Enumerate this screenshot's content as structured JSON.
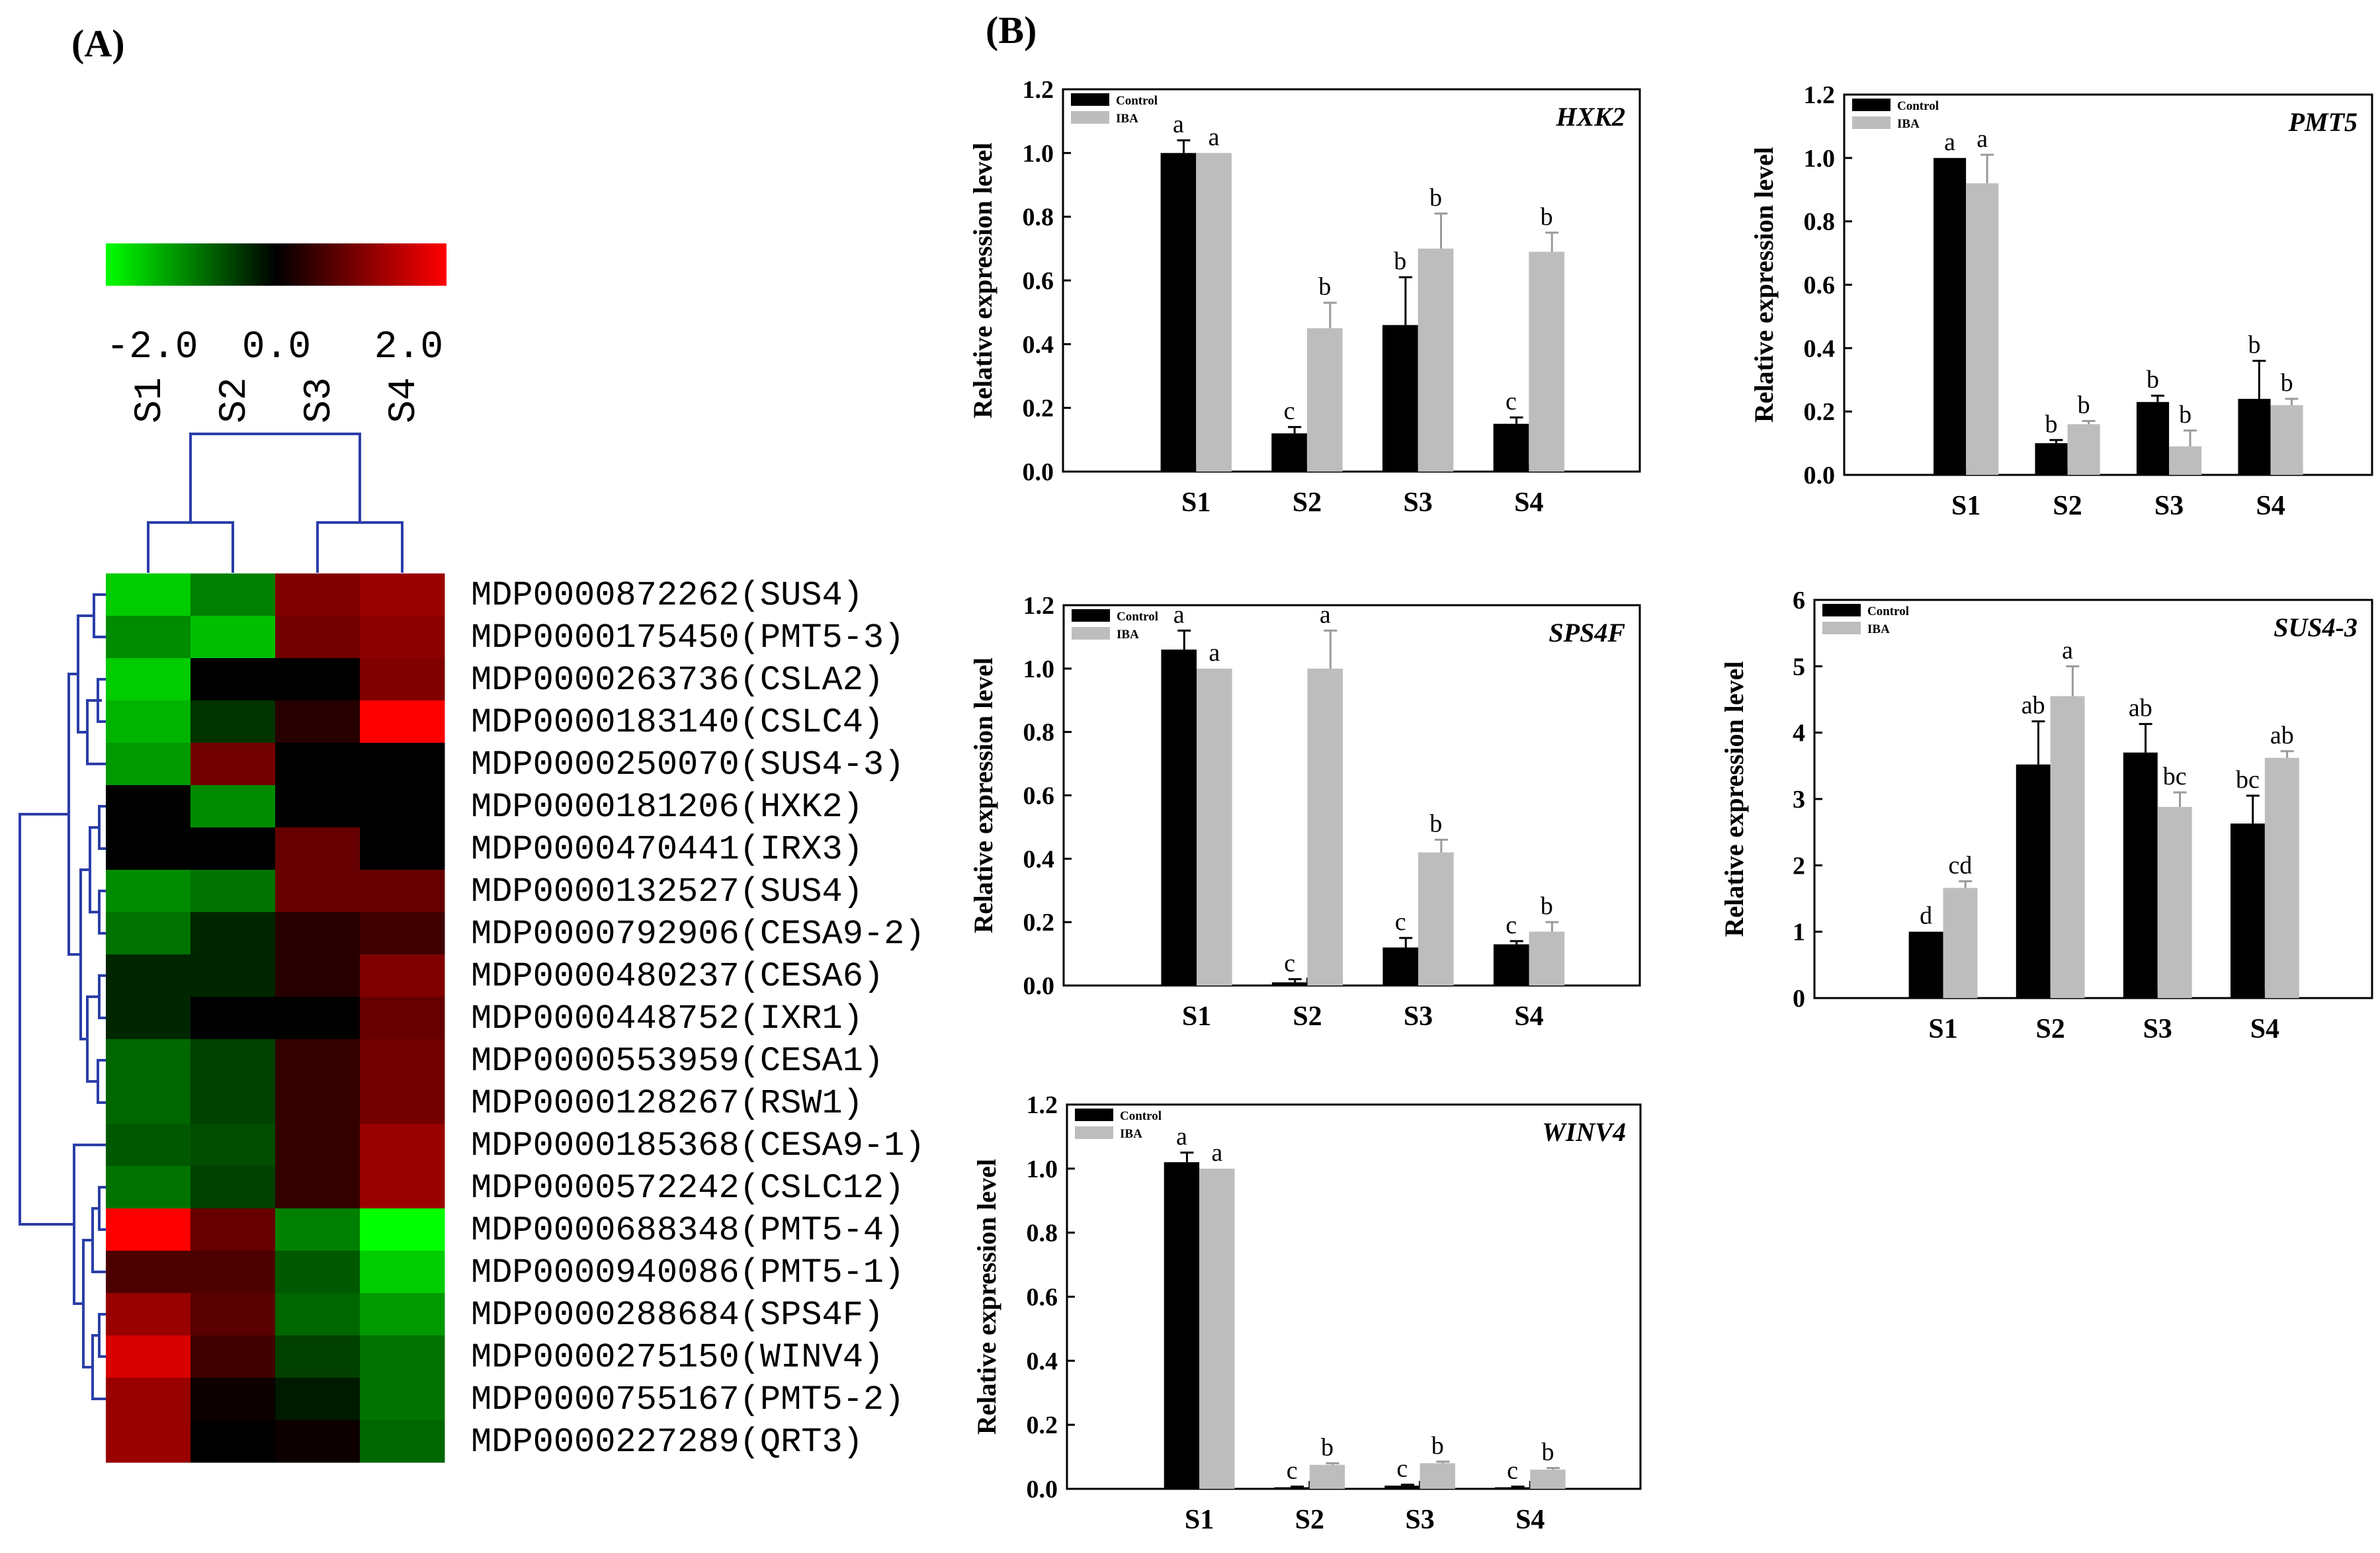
{
  "panel_labels": {
    "a": "(A)",
    "b": "(B)"
  },
  "heatmap": {
    "scale": {
      "min_label": "-2.0",
      "mid_label": "0.0",
      "max_label": "2.0",
      "min": -2,
      "max": 2
    },
    "columns": [
      "S1",
      "S2",
      "S3",
      "S4"
    ],
    "rows": [
      {
        "gene": "MDP0000872262(SUS4)",
        "values": [
          -1.6,
          -1.0,
          1.0,
          1.2
        ]
      },
      {
        "gene": "MDP0000175450(PMT5-3)",
        "values": [
          -1.1,
          -1.5,
          0.9,
          1.1
        ]
      },
      {
        "gene": "MDP0000263736(CSLA2)",
        "values": [
          -1.6,
          0.0,
          0.0,
          1.0
        ]
      },
      {
        "gene": "MDP0000183140(CSLC4)",
        "values": [
          -1.4,
          -0.4,
          0.3,
          2.0
        ]
      },
      {
        "gene": "MDP0000250070(SUS4-3)",
        "values": [
          -1.2,
          0.9,
          0.0,
          0.0
        ]
      },
      {
        "gene": "MDP0000181206(HXK2)",
        "values": [
          0.0,
          -1.1,
          0.0,
          0.0
        ]
      },
      {
        "gene": "MDP0000470441(IRX3)",
        "values": [
          0.0,
          0.0,
          0.8,
          0.0
        ]
      },
      {
        "gene": "MDP0000132527(SUS4)",
        "values": [
          -1.1,
          -0.9,
          0.8,
          0.8
        ]
      },
      {
        "gene": "MDP0000792906(CESA9-2)",
        "values": [
          -0.9,
          -0.3,
          0.3,
          0.5
        ]
      },
      {
        "gene": "MDP0000480237(CESA6)",
        "values": [
          -0.3,
          -0.3,
          0.3,
          1.0
        ]
      },
      {
        "gene": "MDP0000448752(IXR1)",
        "values": [
          -0.3,
          0.0,
          0.0,
          0.8
        ]
      },
      {
        "gene": "MDP0000553959(CESA1)",
        "values": [
          -0.8,
          -0.5,
          0.4,
          0.9
        ]
      },
      {
        "gene": "MDP0000128267(RSW1)",
        "values": [
          -0.8,
          -0.5,
          0.4,
          0.9
        ]
      },
      {
        "gene": "MDP0000185368(CESA9-1)",
        "values": [
          -0.7,
          -0.6,
          0.4,
          1.2
        ]
      },
      {
        "gene": "MDP0000572242(CSLC12)",
        "values": [
          -0.9,
          -0.5,
          0.4,
          1.2
        ]
      },
      {
        "gene": "MDP0000688348(PMT5-4)",
        "values": [
          2.0,
          0.8,
          -1.0,
          -2.0
        ]
      },
      {
        "gene": "MDP0000940086(PMT5-1)",
        "values": [
          0.6,
          0.6,
          -0.7,
          -1.6
        ]
      },
      {
        "gene": "MDP0000288684(SPS4F)",
        "values": [
          1.2,
          0.7,
          -0.8,
          -1.2
        ]
      },
      {
        "gene": "MDP0000275150(WINV4)",
        "values": [
          1.7,
          0.5,
          -0.5,
          -0.9
        ]
      },
      {
        "gene": "MDP0000755167(PMT5-2)",
        "values": [
          1.2,
          0.1,
          -0.2,
          -0.9
        ]
      },
      {
        "gene": "MDP0000227289(QRT3)",
        "values": [
          1.2,
          0.0,
          0.1,
          -0.8
        ]
      }
    ]
  },
  "chart_data": [
    {
      "type": "bar",
      "title": "HXK2",
      "ylabel": "Relative expression level",
      "categories": [
        "S1",
        "S2",
        "S3",
        "S4"
      ],
      "ylim": [
        0,
        1.2
      ],
      "yticks": [
        "0.0",
        "0.2",
        "0.4",
        "0.6",
        "0.8",
        "1.0",
        "1.2"
      ],
      "legend": [
        "Control",
        "IBA"
      ],
      "series": [
        {
          "name": "Control",
          "color": "#000000",
          "values": [
            1.0,
            0.12,
            0.46,
            0.15
          ],
          "errors": [
            0.04,
            0.02,
            0.15,
            0.02
          ],
          "labels": [
            "a",
            "c",
            "b",
            "c"
          ]
        },
        {
          "name": "IBA",
          "color": "#bdbdbd",
          "values": [
            1.0,
            0.45,
            0.7,
            0.69
          ],
          "errors": [
            0.0,
            0.08,
            0.11,
            0.06
          ],
          "labels": [
            "a",
            "b",
            "b",
            "b"
          ]
        }
      ]
    },
    {
      "type": "bar",
      "title": "PMT5",
      "ylabel": "Relative expression level",
      "categories": [
        "S1",
        "S2",
        "S3",
        "S4"
      ],
      "ylim": [
        0,
        1.2
      ],
      "yticks": [
        "0.0",
        "0.2",
        "0.4",
        "0.6",
        "0.8",
        "1.0",
        "1.2"
      ],
      "legend": [
        "Control",
        "IBA"
      ],
      "series": [
        {
          "name": "Control",
          "color": "#000000",
          "values": [
            1.0,
            0.1,
            0.23,
            0.24
          ],
          "errors": [
            0.0,
            0.01,
            0.02,
            0.12
          ],
          "labels": [
            "a",
            "b",
            "b",
            "b"
          ]
        },
        {
          "name": "IBA",
          "color": "#bdbdbd",
          "values": [
            0.92,
            0.16,
            0.09,
            0.22
          ],
          "errors": [
            0.09,
            0.01,
            0.05,
            0.02
          ],
          "labels": [
            "a",
            "b",
            "b",
            "b"
          ]
        }
      ]
    },
    {
      "type": "bar",
      "title": "SPS4F",
      "ylabel": "Relative expression level",
      "categories": [
        "S1",
        "S2",
        "S3",
        "S4"
      ],
      "ylim": [
        0,
        1.2
      ],
      "yticks": [
        "0.0",
        "0.2",
        "0.4",
        "0.6",
        "0.8",
        "1.0",
        "1.2"
      ],
      "legend": [
        "Control",
        "IBA"
      ],
      "series": [
        {
          "name": "Control",
          "color": "#000000",
          "values": [
            1.06,
            0.01,
            0.12,
            0.13
          ],
          "errors": [
            0.06,
            0.01,
            0.03,
            0.01
          ],
          "labels": [
            "a",
            "c",
            "c",
            "c"
          ]
        },
        {
          "name": "IBA",
          "color": "#bdbdbd",
          "values": [
            1.0,
            1.0,
            0.42,
            0.17
          ],
          "errors": [
            0.0,
            0.12,
            0.04,
            0.03
          ],
          "labels": [
            "a",
            "a",
            "b",
            "b"
          ]
        }
      ]
    },
    {
      "type": "bar",
      "title": "SUS4-3",
      "ylabel": "Relative expression level",
      "categories": [
        "S1",
        "S2",
        "S3",
        "S4"
      ],
      "ylim": [
        0,
        6
      ],
      "yticks": [
        "0",
        "1",
        "2",
        "3",
        "4",
        "5",
        "6"
      ],
      "legend": [
        "Control",
        "IBA"
      ],
      "series": [
        {
          "name": "Control",
          "color": "#000000",
          "values": [
            1.0,
            3.52,
            3.7,
            2.63
          ],
          "errors": [
            0.0,
            0.65,
            0.43,
            0.42
          ],
          "labels": [
            "d",
            "ab",
            "ab",
            "bc"
          ]
        },
        {
          "name": "IBA",
          "color": "#bdbdbd",
          "values": [
            1.66,
            4.55,
            2.88,
            3.62
          ],
          "errors": [
            0.1,
            0.45,
            0.22,
            0.1
          ],
          "labels": [
            "cd",
            "a",
            "bc",
            "ab"
          ]
        }
      ]
    },
    {
      "type": "bar",
      "title": "WINV4",
      "ylabel": "Relative expression level",
      "categories": [
        "S1",
        "S2",
        "S3",
        "S4"
      ],
      "ylim": [
        0,
        1.2
      ],
      "yticks": [
        "0.0",
        "0.2",
        "0.4",
        "0.6",
        "0.8",
        "1.0",
        "1.2"
      ],
      "legend": [
        "Control",
        "IBA"
      ],
      "series": [
        {
          "name": "Control",
          "color": "#000000",
          "values": [
            1.02,
            0.005,
            0.01,
            0.005
          ],
          "errors": [
            0.03,
            0.002,
            0.003,
            0.002
          ],
          "labels": [
            "a",
            "c",
            "c",
            "c"
          ]
        },
        {
          "name": "IBA",
          "color": "#bdbdbd",
          "values": [
            1.0,
            0.075,
            0.08,
            0.06
          ],
          "errors": [
            0.0,
            0.005,
            0.005,
            0.005
          ],
          "labels": [
            "a",
            "b",
            "b",
            "b"
          ]
        }
      ]
    }
  ]
}
